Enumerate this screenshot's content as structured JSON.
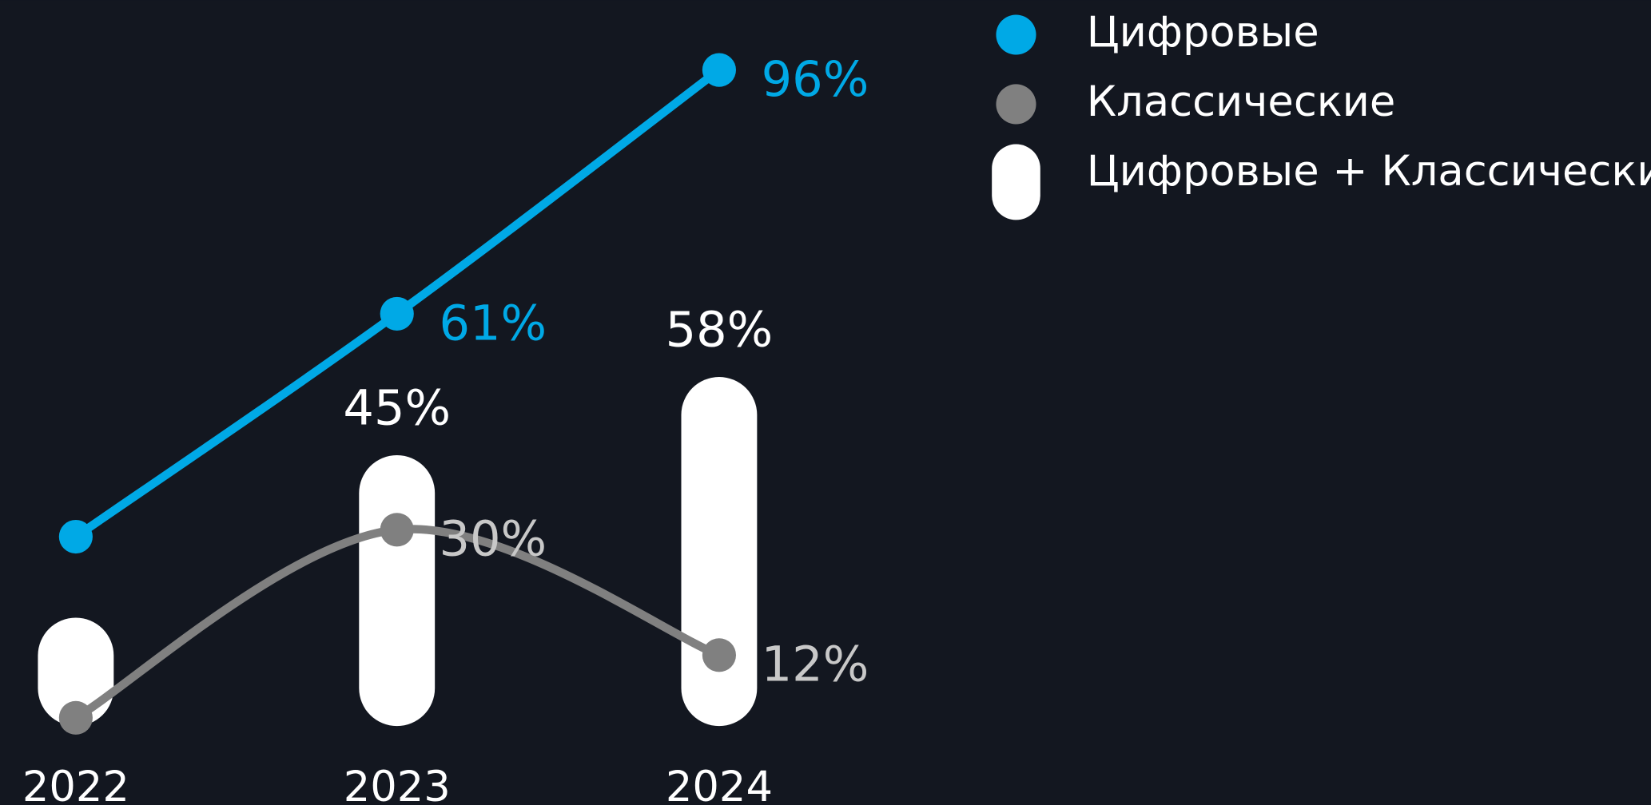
{
  "chart_data": {
    "type": "combo",
    "categories": [
      "2022",
      "2023",
      "2024"
    ],
    "ylim": [
      0,
      100
    ],
    "background": "#131720",
    "legend": "top-right",
    "series": [
      {
        "name": "Цифровые + Классические",
        "type": "bar",
        "color": "#ffffff",
        "label_color": "#ffffff",
        "values": [
          18,
          45,
          58
        ],
        "value_labels": [
          null,
          "45%",
          "58%"
        ]
      },
      {
        "name": "Цифровые",
        "type": "line",
        "color": "#00a9e6",
        "label_color": "#00a9e6",
        "values": [
          29,
          61,
          96
        ],
        "value_labels": [
          null,
          "61%",
          "96%"
        ]
      },
      {
        "name": "Классические",
        "type": "line",
        "color": "#808080",
        "label_color": "#c8c8c8",
        "values": [
          3,
          30,
          12
        ],
        "value_labels": [
          null,
          "30%",
          "12%"
        ]
      }
    ]
  }
}
